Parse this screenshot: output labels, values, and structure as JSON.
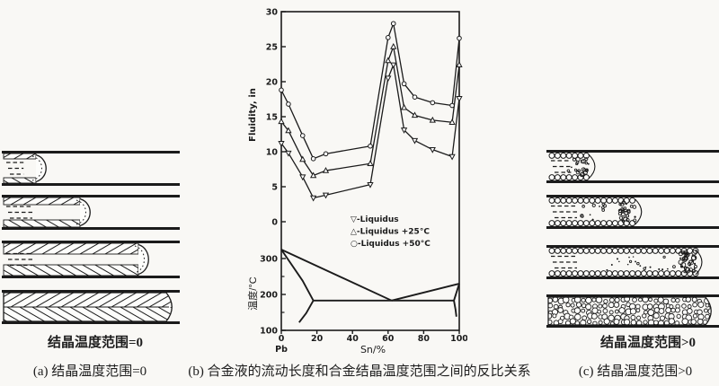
{
  "figure": {
    "panel_a_caption": "结晶温度范围=0",
    "panel_c_caption": "结晶温度范围>0",
    "caption_a": "(a) 结晶温度范围=0",
    "caption_b": "(b) 合金液的流动长度和合金结晶温度范围之间的反比关系",
    "caption_c": "(c) 结晶温度范围>0"
  },
  "illustrations": {
    "panel_a": {
      "style": "hatch",
      "stage_fill_fractions": [
        0.22,
        0.47,
        0.8,
        1.0
      ]
    },
    "panel_c": {
      "style": "granular",
      "stage_fill_fractions": [
        0.26,
        0.53,
        0.88,
        1.0
      ]
    }
  },
  "ink_color": "#1b1b1b",
  "chart_data": [
    {
      "type": "line",
      "title": "",
      "ylabel": "Fluidity, in",
      "xlabel": "Sn/%",
      "xlim": [
        0,
        100
      ],
      "ylim": [
        0,
        30
      ],
      "yticks": [
        0,
        5,
        10,
        15,
        20,
        25,
        30
      ],
      "grid": false,
      "legend_position": "inside lower-right of fluidity plot",
      "legend": [
        "▽-Liquidus",
        "△-Liquidus +25°C",
        "○-Liquidus +50°C"
      ],
      "x": [
        0,
        4,
        12,
        18,
        25,
        50,
        60,
        63,
        69,
        75,
        85,
        96,
        100
      ],
      "series": [
        {
          "name": "Liquidus",
          "marker": "triangle-down",
          "values": [
            11.2,
            9.8,
            6.4,
            3.4,
            3.8,
            5.3,
            20.5,
            22.4,
            13.1,
            11.6,
            10.3,
            9.3,
            17.6
          ]
        },
        {
          "name": "Liquidus +25°C",
          "marker": "triangle-up",
          "values": [
            14.3,
            13.0,
            8.9,
            6.6,
            7.3,
            8.3,
            23.0,
            25.0,
            16.3,
            15.2,
            14.5,
            14.2,
            22.4
          ]
        },
        {
          "name": "Liquidus +50°C",
          "marker": "circle",
          "values": [
            18.8,
            16.8,
            12.3,
            9.0,
            9.7,
            10.8,
            26.3,
            28.3,
            19.7,
            17.8,
            17.0,
            16.6,
            26.2
          ]
        }
      ]
    },
    {
      "type": "line",
      "title": "Pb-Sn phase diagram",
      "ylabel": "温度/°C",
      "xlabel": "Sn/%",
      "x_origin_label": "Pb",
      "xlim": [
        0,
        100
      ],
      "ylim": [
        100,
        350
      ],
      "xticks": [
        0,
        20,
        40,
        60,
        80,
        100
      ],
      "yticks": [
        100,
        200,
        300
      ],
      "yticks_minor": [
        150,
        250
      ],
      "grid": false,
      "series": [
        {
          "name": "liquidus-left",
          "x": [
            0,
            62
          ],
          "y": [
            325,
            183
          ]
        },
        {
          "name": "liquidus-right",
          "x": [
            62,
            100
          ],
          "y": [
            183,
            230
          ]
        },
        {
          "name": "solidus-pb",
          "x": [
            0,
            12,
            18
          ],
          "y": [
            325,
            238,
            183
          ]
        },
        {
          "name": "eutectic-line",
          "x": [
            18,
            97
          ],
          "y": [
            183,
            183
          ]
        },
        {
          "name": "solvus-pb",
          "x": [
            18,
            14,
            10
          ],
          "y": [
            183,
            148,
            122
          ]
        },
        {
          "name": "solidus-sn",
          "x": [
            100,
            97
          ],
          "y": [
            230,
            183
          ]
        },
        {
          "name": "solvus-sn",
          "x": [
            97,
            97.9,
            98.4
          ],
          "y": [
            183,
            158,
            138
          ]
        }
      ]
    }
  ]
}
